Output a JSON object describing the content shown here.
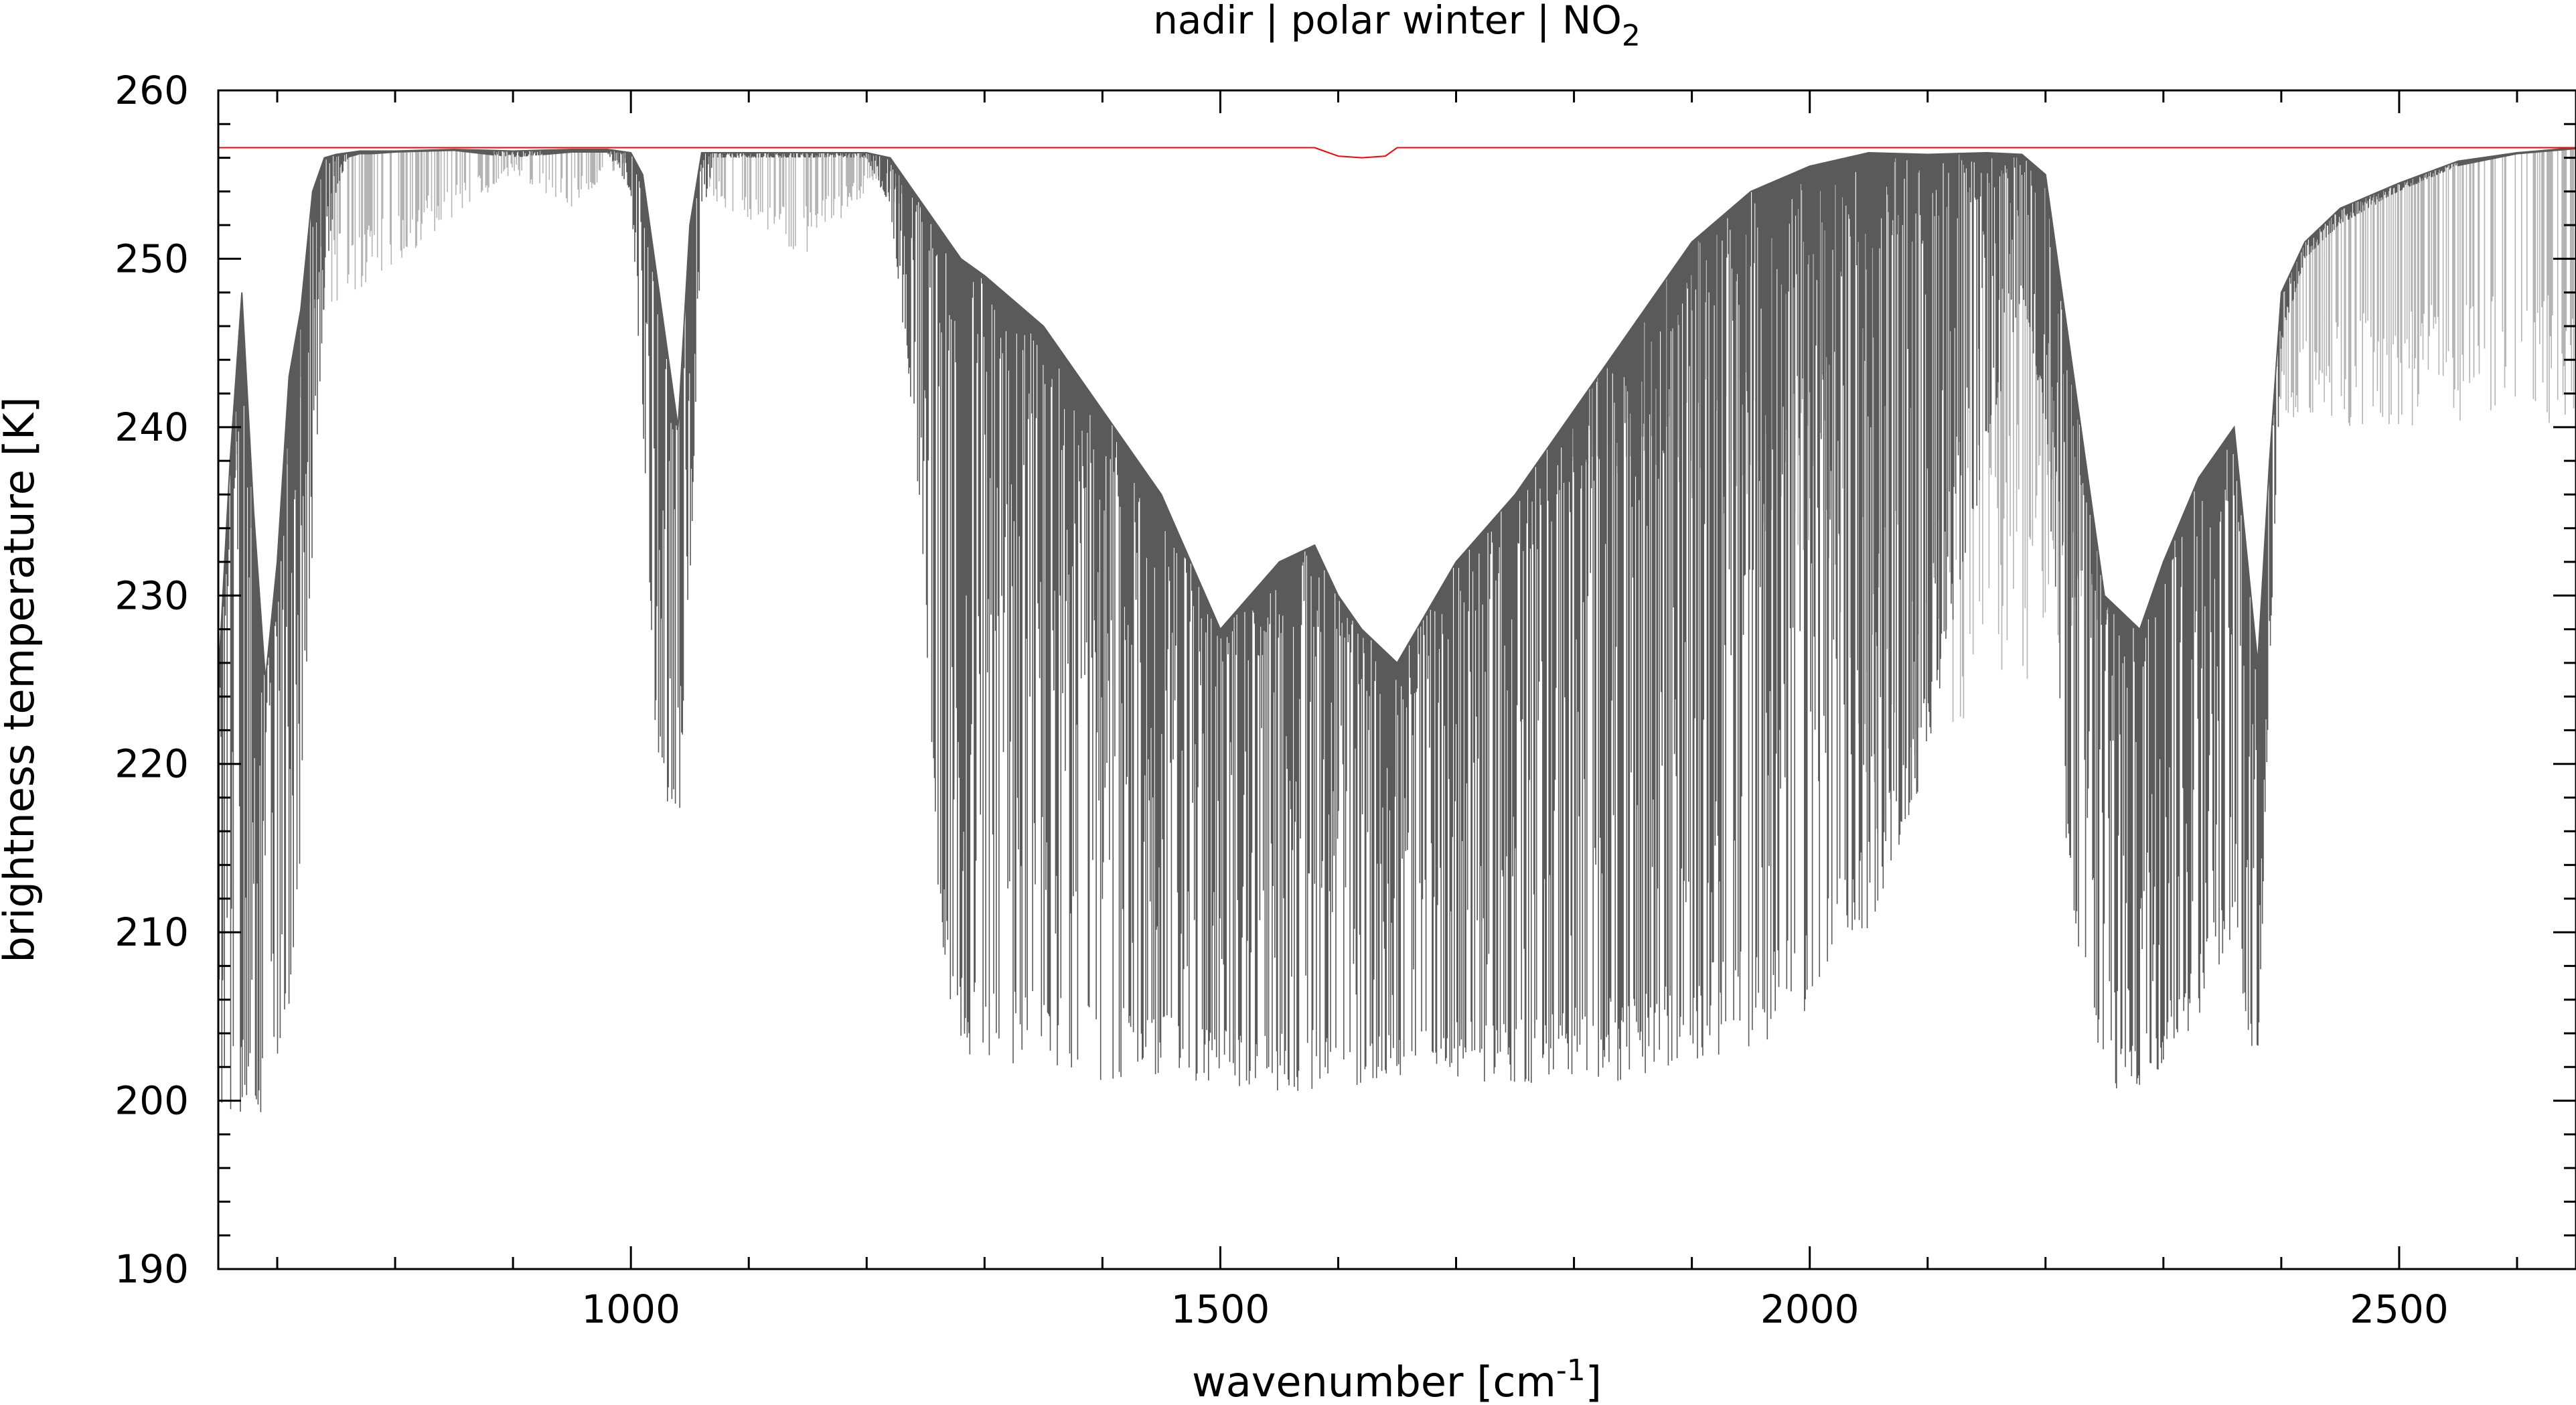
{
  "chart_data": {
    "type": "line",
    "title": "nadir | polar winter | NO",
    "title_subscript": "2",
    "xlabel": "wavenumber [cm",
    "xlabel_superscript": "-1",
    "xlabel_close": "]",
    "ylabel": "brightness temperature [K]",
    "xlim": [
      650,
      2650
    ],
    "ylim": [
      190,
      260
    ],
    "x_ticks": [
      1000,
      1500,
      2000,
      2500
    ],
    "x_tick_labels": [
      "1000",
      "1500",
      "2000",
      "2500"
    ],
    "y_ticks": [
      190,
      200,
      210,
      220,
      230,
      240,
      250,
      260
    ],
    "y_tick_labels": [
      "190",
      "200",
      "210",
      "220",
      "230",
      "240",
      "250",
      "260"
    ],
    "grid": false,
    "colors": {
      "spectrum_dark": "#5a5a5a",
      "spectrum_light": "#b4b4b4",
      "reference_line": "#ff0000",
      "axes": "#000000"
    },
    "series": [
      {
        "style": "dark",
        "x": [
          650,
          660,
          670,
          680,
          690,
          700,
          710,
          720,
          730,
          740,
          750,
          760,
          770,
          780,
          800,
          850,
          900,
          950,
          980,
          1000,
          1010,
          1020,
          1030,
          1040,
          1050,
          1060,
          1070,
          1100,
          1150,
          1200,
          1220,
          1240,
          1250,
          1260,
          1270,
          1280,
          1300,
          1350,
          1400,
          1450,
          1500,
          1550,
          1580,
          1600,
          1620,
          1650,
          1700,
          1750,
          1800,
          1850,
          1900,
          1950,
          2000,
          2050,
          2100,
          2150,
          2180,
          2200,
          2220,
          2250,
          2280,
          2300,
          2330,
          2360,
          2380,
          2390,
          2400,
          2420,
          2450,
          2500,
          2550,
          2600,
          2650
        ],
        "y": [
          200,
          199,
          198.8,
          199,
          199.5,
          202,
          205,
          215,
          232,
          248,
          254,
          256,
          256.2,
          256.2,
          256.3,
          256.4,
          256,
          256.3,
          256.3,
          254,
          240,
          222,
          218,
          215,
          230,
          252,
          256,
          256,
          256,
          256,
          253,
          240,
          228,
          212,
          204,
          203,
          202,
          201,
          201,
          201,
          201,
          200.5,
          200.5,
          201,
          200.5,
          201,
          201,
          201,
          201,
          201,
          202,
          203,
          205,
          210,
          220,
          238,
          248,
          240,
          212,
          200,
          200.5,
          202,
          205,
          210,
          200,
          225,
          245,
          250,
          252,
          254,
          255.5,
          256.2,
          256.5
        ],
        "valley_floor": [
          200,
          199,
          198.8,
          199,
          199.5,
          202,
          205,
          215,
          232,
          248,
          254,
          256,
          256.2,
          256.2,
          256.3,
          256.4,
          256,
          256.3,
          256.3,
          254,
          240,
          222,
          218,
          215,
          230,
          252,
          256,
          256,
          256,
          256,
          253,
          240,
          228,
          212,
          204,
          203,
          202,
          201,
          201,
          201,
          201,
          200.5,
          200.5,
          201,
          200.5,
          201,
          201,
          201,
          201,
          201,
          202,
          203,
          205,
          210,
          220,
          238,
          248,
          240,
          212,
          200,
          200.5,
          202,
          205,
          210,
          200,
          225,
          245,
          250,
          252,
          254,
          255.5,
          256.2,
          256.5
        ],
        "envelope_top": [
          225,
          238,
          248,
          235,
          225,
          232,
          243,
          247,
          254,
          256,
          256.2,
          256.3,
          256.4,
          256.4,
          256.4,
          256.5,
          256.4,
          256.5,
          256.5,
          256.3,
          255,
          250,
          245,
          240,
          252,
          256.3,
          256.3,
          256.3,
          256.3,
          256.3,
          256,
          254,
          253,
          252,
          251,
          250,
          249,
          246,
          241,
          236,
          228,
          232,
          233,
          230,
          228,
          226,
          232,
          236,
          241,
          246,
          251,
          254,
          255.5,
          256.3,
          256.2,
          256.3,
          256.2,
          255,
          245,
          230,
          228,
          232,
          237,
          240,
          226,
          238,
          248,
          251,
          253,
          254.5,
          255.8,
          256.3,
          256.6
        ]
      },
      {
        "style": "light",
        "x": [
          650,
          670,
          690,
          710,
          730,
          900,
          950,
          1000,
          1150,
          1200,
          2020,
          2050,
          2060,
          2070,
          2080,
          2290,
          2310,
          2330,
          2350,
          2360,
          2370
        ],
        "y": [
          235,
          238,
          226,
          238,
          246,
          255,
          253,
          256,
          250,
          254,
          232,
          216,
          212,
          215,
          220,
          230,
          240,
          250,
          250,
          248,
          240
        ]
      },
      {
        "style": "reference",
        "x": [
          650,
          1580,
          1600,
          1620,
          1640,
          1650,
          2650
        ],
        "y": [
          256.6,
          256.6,
          256.1,
          256.0,
          256.1,
          256.6,
          256.6
        ]
      }
    ]
  }
}
